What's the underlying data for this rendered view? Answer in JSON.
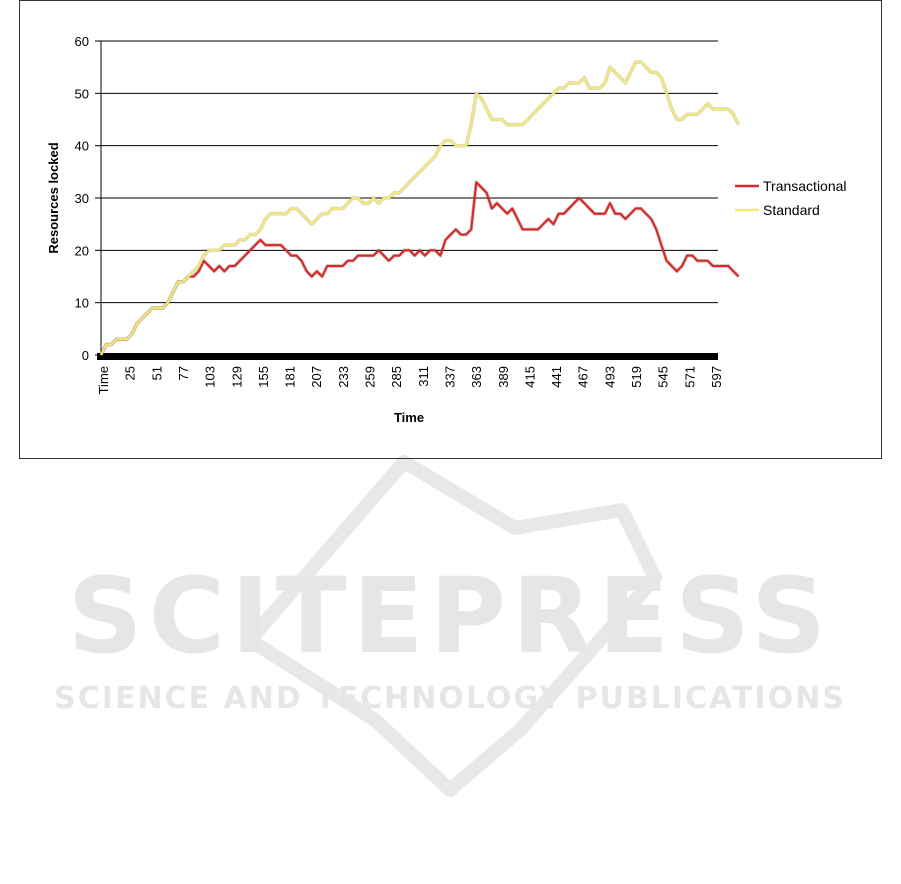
{
  "watermark": {
    "name": "SCITEPRESS",
    "tagline": "SCIENCE AND TECHNOLOGY PUBLICATIONS"
  },
  "colors": {
    "transactional": "#d42a2a",
    "standard": "#f2ea7a",
    "grid": "#000000",
    "x_axis_bar": "#000000"
  },
  "chart_data": {
    "type": "line",
    "xlabel": "Time",
    "ylabel": "Resources locked",
    "ylim": [
      0,
      60
    ],
    "yticks": [
      0,
      10,
      20,
      30,
      40,
      50,
      60
    ],
    "xlim": [
      0,
      600
    ],
    "xticks": [
      "Time",
      "25",
      "51",
      "77",
      "103",
      "129",
      "155",
      "181",
      "207",
      "233",
      "259",
      "285",
      "311",
      "337",
      "363",
      "389",
      "415",
      "441",
      "467",
      "493",
      "519",
      "545",
      "571",
      "597"
    ],
    "grid": true,
    "legend": "right",
    "series": [
      {
        "name": "Transactional",
        "points": [
          [
            0,
            0
          ],
          [
            5,
            2
          ],
          [
            10,
            2
          ],
          [
            15,
            3
          ],
          [
            20,
            3
          ],
          [
            25,
            3
          ],
          [
            30,
            4
          ],
          [
            35,
            6
          ],
          [
            40,
            7
          ],
          [
            45,
            8
          ],
          [
            50,
            9
          ],
          [
            55,
            9
          ],
          [
            60,
            9
          ],
          [
            65,
            10
          ],
          [
            70,
            12
          ],
          [
            75,
            14
          ],
          [
            80,
            14
          ],
          [
            85,
            15
          ],
          [
            90,
            15
          ],
          [
            95,
            16
          ],
          [
            100,
            18
          ],
          [
            105,
            17
          ],
          [
            110,
            16
          ],
          [
            115,
            17
          ],
          [
            120,
            16
          ],
          [
            125,
            17
          ],
          [
            130,
            17
          ],
          [
            135,
            18
          ],
          [
            140,
            19
          ],
          [
            145,
            20
          ],
          [
            150,
            21
          ],
          [
            155,
            22
          ],
          [
            160,
            21
          ],
          [
            165,
            21
          ],
          [
            170,
            21
          ],
          [
            175,
            21
          ],
          [
            180,
            20
          ],
          [
            185,
            19
          ],
          [
            190,
            19
          ],
          [
            195,
            18
          ],
          [
            200,
            16
          ],
          [
            205,
            15
          ],
          [
            210,
            16
          ],
          [
            215,
            15
          ],
          [
            220,
            17
          ],
          [
            225,
            17
          ],
          [
            230,
            17
          ],
          [
            235,
            17
          ],
          [
            240,
            18
          ],
          [
            245,
            18
          ],
          [
            250,
            19
          ],
          [
            255,
            19
          ],
          [
            260,
            19
          ],
          [
            265,
            19
          ],
          [
            270,
            20
          ],
          [
            275,
            19
          ],
          [
            280,
            18
          ],
          [
            285,
            19
          ],
          [
            290,
            19
          ],
          [
            295,
            20
          ],
          [
            300,
            20
          ],
          [
            305,
            19
          ],
          [
            310,
            20
          ],
          [
            315,
            19
          ],
          [
            320,
            20
          ],
          [
            325,
            20
          ],
          [
            330,
            19
          ],
          [
            335,
            22
          ],
          [
            340,
            23
          ],
          [
            345,
            24
          ],
          [
            350,
            23
          ],
          [
            355,
            23
          ],
          [
            360,
            24
          ],
          [
            365,
            33
          ],
          [
            370,
            32
          ],
          [
            375,
            31
          ],
          [
            380,
            28
          ],
          [
            385,
            29
          ],
          [
            390,
            28
          ],
          [
            395,
            27
          ],
          [
            400,
            28
          ],
          [
            405,
            26
          ],
          [
            410,
            24
          ],
          [
            415,
            24
          ],
          [
            420,
            24
          ],
          [
            425,
            24
          ],
          [
            430,
            25
          ],
          [
            435,
            26
          ],
          [
            440,
            25
          ],
          [
            445,
            27
          ],
          [
            450,
            27
          ],
          [
            455,
            28
          ],
          [
            460,
            29
          ],
          [
            465,
            30
          ],
          [
            470,
            29
          ],
          [
            475,
            28
          ],
          [
            480,
            27
          ],
          [
            485,
            27
          ],
          [
            490,
            27
          ],
          [
            495,
            29
          ],
          [
            500,
            27
          ],
          [
            505,
            27
          ],
          [
            510,
            26
          ],
          [
            515,
            27
          ],
          [
            520,
            28
          ],
          [
            525,
            28
          ],
          [
            530,
            27
          ],
          [
            535,
            26
          ],
          [
            540,
            24
          ],
          [
            545,
            21
          ],
          [
            550,
            18
          ],
          [
            555,
            17
          ],
          [
            560,
            16
          ],
          [
            565,
            17
          ],
          [
            570,
            19
          ],
          [
            575,
            19
          ],
          [
            580,
            18
          ],
          [
            585,
            18
          ],
          [
            590,
            18
          ],
          [
            595,
            17
          ],
          [
            600,
            17
          ],
          [
            605,
            17
          ],
          [
            610,
            17
          ],
          [
            615,
            16
          ],
          [
            620,
            15
          ]
        ]
      },
      {
        "name": "Standard",
        "points": [
          [
            0,
            0
          ],
          [
            5,
            2
          ],
          [
            10,
            2
          ],
          [
            15,
            3
          ],
          [
            20,
            3
          ],
          [
            25,
            3
          ],
          [
            30,
            4
          ],
          [
            35,
            6
          ],
          [
            40,
            7
          ],
          [
            45,
            8
          ],
          [
            50,
            9
          ],
          [
            55,
            9
          ],
          [
            60,
            9
          ],
          [
            65,
            10
          ],
          [
            70,
            12
          ],
          [
            75,
            14
          ],
          [
            80,
            14
          ],
          [
            85,
            15
          ],
          [
            90,
            16
          ],
          [
            95,
            17
          ],
          [
            100,
            19
          ],
          [
            105,
            20
          ],
          [
            110,
            20
          ],
          [
            115,
            20
          ],
          [
            120,
            21
          ],
          [
            125,
            21
          ],
          [
            130,
            21
          ],
          [
            135,
            22
          ],
          [
            140,
            22
          ],
          [
            145,
            23
          ],
          [
            150,
            23
          ],
          [
            155,
            24
          ],
          [
            160,
            26
          ],
          [
            165,
            27
          ],
          [
            170,
            27
          ],
          [
            175,
            27
          ],
          [
            180,
            27
          ],
          [
            185,
            28
          ],
          [
            190,
            28
          ],
          [
            195,
            27
          ],
          [
            200,
            26
          ],
          [
            205,
            25
          ],
          [
            210,
            26
          ],
          [
            215,
            27
          ],
          [
            220,
            27
          ],
          [
            225,
            28
          ],
          [
            230,
            28
          ],
          [
            235,
            28
          ],
          [
            240,
            29
          ],
          [
            245,
            30
          ],
          [
            250,
            30
          ],
          [
            255,
            29
          ],
          [
            260,
            29
          ],
          [
            265,
            30
          ],
          [
            270,
            29
          ],
          [
            275,
            30
          ],
          [
            280,
            30
          ],
          [
            285,
            31
          ],
          [
            290,
            31
          ],
          [
            295,
            32
          ],
          [
            300,
            33
          ],
          [
            305,
            34
          ],
          [
            310,
            35
          ],
          [
            315,
            36
          ],
          [
            320,
            37
          ],
          [
            325,
            38
          ],
          [
            330,
            40
          ],
          [
            335,
            41
          ],
          [
            340,
            41
          ],
          [
            345,
            40
          ],
          [
            350,
            40
          ],
          [
            355,
            40
          ],
          [
            360,
            44
          ],
          [
            365,
            50
          ],
          [
            370,
            49
          ],
          [
            375,
            47
          ],
          [
            380,
            45
          ],
          [
            385,
            45
          ],
          [
            390,
            45
          ],
          [
            395,
            44
          ],
          [
            400,
            44
          ],
          [
            405,
            44
          ],
          [
            410,
            44
          ],
          [
            415,
            45
          ],
          [
            420,
            46
          ],
          [
            425,
            47
          ],
          [
            430,
            48
          ],
          [
            435,
            49
          ],
          [
            440,
            50
          ],
          [
            445,
            51
          ],
          [
            450,
            51
          ],
          [
            455,
            52
          ],
          [
            460,
            52
          ],
          [
            465,
            52
          ],
          [
            470,
            53
          ],
          [
            475,
            51
          ],
          [
            480,
            51
          ],
          [
            485,
            51
          ],
          [
            490,
            52
          ],
          [
            495,
            55
          ],
          [
            500,
            54
          ],
          [
            505,
            53
          ],
          [
            510,
            52
          ],
          [
            515,
            54
          ],
          [
            520,
            56
          ],
          [
            525,
            56
          ],
          [
            530,
            55
          ],
          [
            535,
            54
          ],
          [
            540,
            54
          ],
          [
            545,
            53
          ],
          [
            550,
            50
          ],
          [
            555,
            47
          ],
          [
            560,
            45
          ],
          [
            565,
            45
          ],
          [
            570,
            46
          ],
          [
            575,
            46
          ],
          [
            580,
            46
          ],
          [
            585,
            47
          ],
          [
            590,
            48
          ],
          [
            595,
            47
          ],
          [
            600,
            47
          ],
          [
            605,
            47
          ],
          [
            610,
            47
          ],
          [
            615,
            46
          ],
          [
            620,
            44
          ]
        ]
      }
    ]
  }
}
